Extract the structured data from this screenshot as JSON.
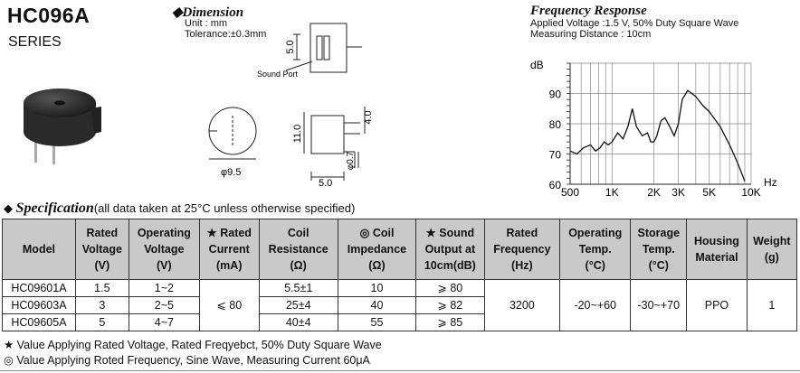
{
  "header": {
    "code": "HC096A",
    "series": "SERIES"
  },
  "dimension": {
    "title": "Dimension",
    "unit": "Unit : mm",
    "tolerance": "Tolerance:±0.3mm",
    "labels": {
      "d1": "5.0",
      "sound_port": "Sound Port",
      "d2": "11.0",
      "d3": "4.0",
      "d4": "φ9.5",
      "d5": "φ0.7",
      "d6": "5.0"
    }
  },
  "frequency": {
    "title": "Frequency Response",
    "line1": "Applied Voltage :1.5 V, 50% Duty Square Wave",
    "line2": "Measuring Distance : 10cm"
  },
  "chart_data": {
    "type": "line",
    "ylabel": "dB",
    "xlabel": "Hz",
    "x_ticks": [
      "500",
      "1K",
      "2K",
      "3K",
      "5K",
      "10K"
    ],
    "y_ticks": [
      "60",
      "70",
      "80",
      "90"
    ],
    "ylim": [
      60,
      100
    ],
    "x_scale": "log",
    "grid": true,
    "series": [
      {
        "x": [
          500,
          560,
          620,
          700,
          760,
          820,
          880,
          940,
          1000,
          1100,
          1200,
          1300,
          1400,
          1500,
          1650,
          1800,
          1900,
          2000,
          2100,
          2250,
          2400,
          2600,
          2800,
          3000,
          3200,
          3500,
          4000,
          4500,
          5000,
          6000,
          7000,
          8000,
          9000
        ],
        "y": [
          71,
          70,
          72,
          73,
          71,
          72,
          74,
          73,
          74,
          77,
          75,
          79,
          85,
          79,
          76,
          77,
          74,
          74,
          76,
          81,
          82,
          79,
          76,
          80,
          88,
          91,
          89,
          86,
          84,
          79,
          73,
          67,
          61
        ]
      }
    ]
  },
  "spec": {
    "title": "Specification",
    "note": "(all data taken at 25°C unless otherwise specified)",
    "headers": [
      [
        "Model"
      ],
      [
        "Rated",
        "Voltage",
        "(V)"
      ],
      [
        "Operating",
        "Voltage",
        "(V)"
      ],
      [
        "★ Rated",
        "Current",
        "(mA)"
      ],
      [
        "Coil",
        "Resistance",
        "(Ω)"
      ],
      [
        "◎ Coil",
        "Impedance",
        "(Ω)"
      ],
      [
        "★ Sound",
        "Output at",
        "10cm(dB)"
      ],
      [
        "Rated",
        "Frequency",
        "(Hz)"
      ],
      [
        "Operating",
        "Temp.",
        "(°C)"
      ],
      [
        "Storage",
        "Temp.",
        "(°C)"
      ],
      [
        "Housing",
        "Material"
      ],
      [
        "Weight",
        "(g)"
      ]
    ],
    "rows": [
      {
        "model": "HC09601A",
        "rated_v": "1.5",
        "op_v": "1~2",
        "coil_r": "5.5±1",
        "impedance": "10",
        "sound": "⩾ 80"
      },
      {
        "model": "HC09603A",
        "rated_v": "3",
        "op_v": "2~5",
        "coil_r": "25±4",
        "impedance": "40",
        "sound": "⩾ 82"
      },
      {
        "model": "HC09605A",
        "rated_v": "5",
        "op_v": "4~7",
        "coil_r": "40±4",
        "impedance": "55",
        "sound": "⩾ 85"
      }
    ],
    "shared": {
      "current": "⩽ 80",
      "frequency": "3200",
      "op_temp": "-20~+60",
      "storage_temp": "-30~+70",
      "housing": "PPO",
      "weight": "1"
    }
  },
  "footnotes": {
    "star": "★ Value Applying Rated Voltage, Rated Freqyebct, 50% Duty Square Wave",
    "circle": "◎ Value Applying Roted Frequency, Sine Wave, Measuring Current 60μA"
  }
}
